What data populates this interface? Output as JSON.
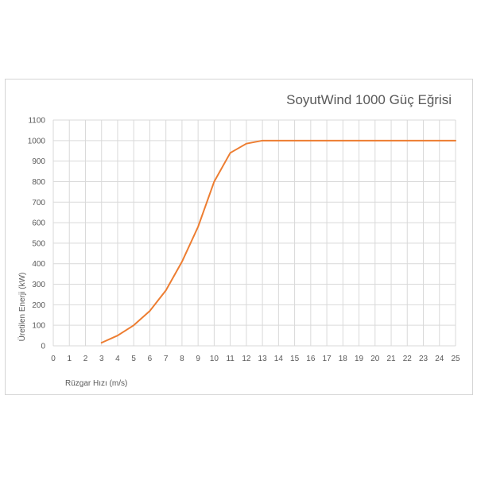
{
  "chart_data": {
    "type": "line",
    "title": "SoyutWind 1000 Güç Eğrisi",
    "xlabel": "Rüzgar Hızı (m/s)",
    "ylabel": "Üretilen Enerji (kW)",
    "xlim": [
      0,
      25
    ],
    "ylim": [
      0,
      1100
    ],
    "x_ticks": [
      "0",
      "1",
      "2",
      "3",
      "4",
      "5",
      "6",
      "7",
      "8",
      "9",
      "10",
      "11",
      "12",
      "13",
      "14",
      "15",
      "16",
      "17",
      "18",
      "19",
      "20",
      "21",
      "22",
      "23",
      "24",
      "25"
    ],
    "y_ticks": [
      "0",
      "100",
      "200",
      "300",
      "400",
      "500",
      "600",
      "700",
      "800",
      "900",
      "1000",
      "1100"
    ],
    "grid": true,
    "legend": "none",
    "line_color": "#ED7D31",
    "series": [
      {
        "x": [
          3,
          4,
          5,
          6,
          7,
          8,
          9,
          10,
          11,
          12,
          13,
          14,
          15,
          16,
          17,
          18,
          19,
          20,
          21,
          22,
          23,
          24,
          25
        ],
        "values": [
          15,
          50,
          100,
          170,
          270,
          410,
          580,
          800,
          940,
          985,
          1000,
          1000,
          1000,
          1000,
          1000,
          1000,
          1000,
          1000,
          1000,
          1000,
          1000,
          1000,
          1000
        ]
      }
    ]
  }
}
